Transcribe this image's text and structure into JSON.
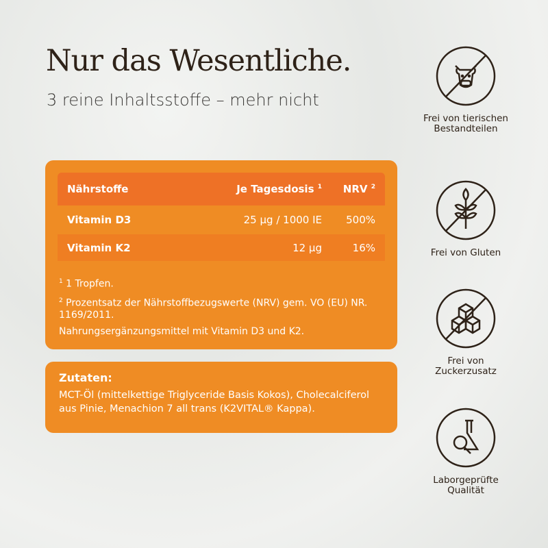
{
  "title": "Nur das Wesentliche.",
  "subtitle": "3 reine Inhaltsstoffe – mehr nicht",
  "table": {
    "headers": [
      "Nährstoffe",
      "Je Tagesdosis",
      "NRV"
    ],
    "header_sups": [
      "1",
      "2"
    ],
    "rows": [
      [
        "Vitamin D3",
        "25 µg / 1000 IE",
        "500%"
      ],
      [
        "Vitamin K2",
        "12 µg",
        "16%"
      ]
    ]
  },
  "notes": {
    "n1_sup": "1",
    "n1": " 1 Tropfen.",
    "n2_sup": "2",
    "n2": " Prozentsatz der Nährstoffbezugswerte (NRV) gem. VO (EU) NR. 1169/2011.",
    "n3": "Nahrungsergänzungsmittel mit Vitamin D3 und K2."
  },
  "ingredients": {
    "title": "Zutaten:",
    "text": "MCT-Öl (mittelkettige Triglyceride Basis Kokos), Cholecalciferol aus Pinie, Menachion 7 all trans (K2VITAL® Kappa)."
  },
  "features": [
    {
      "icon": "no-cow-icon",
      "label": "Frei von tierischen Bestandteilen"
    },
    {
      "icon": "no-wheat-icon",
      "label": "Frei von Gluten"
    },
    {
      "icon": "no-sugar-cubes-icon",
      "label": "Frei von Zuckerzusatz"
    },
    {
      "icon": "lab-flask-icon",
      "label": "Laborgeprüfte Qualität"
    }
  ],
  "colors": {
    "card": "#ef8c24",
    "header": "#ee7126",
    "text_dark": "#2e2218"
  }
}
